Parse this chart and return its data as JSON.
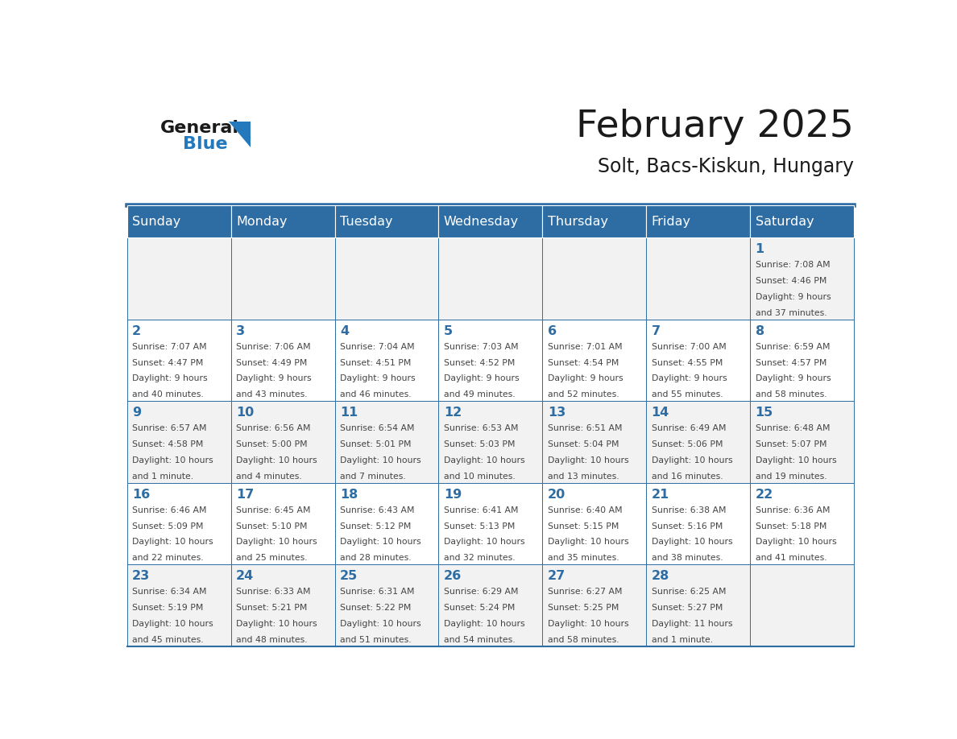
{
  "title": "February 2025",
  "subtitle": "Solt, Bacs-Kiskun, Hungary",
  "days_of_week": [
    "Sunday",
    "Monday",
    "Tuesday",
    "Wednesday",
    "Thursday",
    "Friday",
    "Saturday"
  ],
  "header_bg": "#2E6DA4",
  "header_text": "#FFFFFF",
  "cell_bg_even": "#F2F2F2",
  "cell_bg_odd": "#FFFFFF",
  "border_color": "#2E6DA4",
  "day_number_color": "#2E6DA4",
  "text_color": "#444444",
  "title_color": "#1a1a1a",
  "logo_general_color": "#1a1a1a",
  "logo_blue_color": "#2479BD",
  "weeks": [
    [
      null,
      null,
      null,
      null,
      null,
      null,
      1
    ],
    [
      2,
      3,
      4,
      5,
      6,
      7,
      8
    ],
    [
      9,
      10,
      11,
      12,
      13,
      14,
      15
    ],
    [
      16,
      17,
      18,
      19,
      20,
      21,
      22
    ],
    [
      23,
      24,
      25,
      26,
      27,
      28,
      null
    ]
  ],
  "day_data": {
    "1": {
      "sunrise": "7:08 AM",
      "sunset": "4:46 PM",
      "daylight_line1": "Daylight: 9 hours",
      "daylight_line2": "and 37 minutes."
    },
    "2": {
      "sunrise": "7:07 AM",
      "sunset": "4:47 PM",
      "daylight_line1": "Daylight: 9 hours",
      "daylight_line2": "and 40 minutes."
    },
    "3": {
      "sunrise": "7:06 AM",
      "sunset": "4:49 PM",
      "daylight_line1": "Daylight: 9 hours",
      "daylight_line2": "and 43 minutes."
    },
    "4": {
      "sunrise": "7:04 AM",
      "sunset": "4:51 PM",
      "daylight_line1": "Daylight: 9 hours",
      "daylight_line2": "and 46 minutes."
    },
    "5": {
      "sunrise": "7:03 AM",
      "sunset": "4:52 PM",
      "daylight_line1": "Daylight: 9 hours",
      "daylight_line2": "and 49 minutes."
    },
    "6": {
      "sunrise": "7:01 AM",
      "sunset": "4:54 PM",
      "daylight_line1": "Daylight: 9 hours",
      "daylight_line2": "and 52 minutes."
    },
    "7": {
      "sunrise": "7:00 AM",
      "sunset": "4:55 PM",
      "daylight_line1": "Daylight: 9 hours",
      "daylight_line2": "and 55 minutes."
    },
    "8": {
      "sunrise": "6:59 AM",
      "sunset": "4:57 PM",
      "daylight_line1": "Daylight: 9 hours",
      "daylight_line2": "and 58 minutes."
    },
    "9": {
      "sunrise": "6:57 AM",
      "sunset": "4:58 PM",
      "daylight_line1": "Daylight: 10 hours",
      "daylight_line2": "and 1 minute."
    },
    "10": {
      "sunrise": "6:56 AM",
      "sunset": "5:00 PM",
      "daylight_line1": "Daylight: 10 hours",
      "daylight_line2": "and 4 minutes."
    },
    "11": {
      "sunrise": "6:54 AM",
      "sunset": "5:01 PM",
      "daylight_line1": "Daylight: 10 hours",
      "daylight_line2": "and 7 minutes."
    },
    "12": {
      "sunrise": "6:53 AM",
      "sunset": "5:03 PM",
      "daylight_line1": "Daylight: 10 hours",
      "daylight_line2": "and 10 minutes."
    },
    "13": {
      "sunrise": "6:51 AM",
      "sunset": "5:04 PM",
      "daylight_line1": "Daylight: 10 hours",
      "daylight_line2": "and 13 minutes."
    },
    "14": {
      "sunrise": "6:49 AM",
      "sunset": "5:06 PM",
      "daylight_line1": "Daylight: 10 hours",
      "daylight_line2": "and 16 minutes."
    },
    "15": {
      "sunrise": "6:48 AM",
      "sunset": "5:07 PM",
      "daylight_line1": "Daylight: 10 hours",
      "daylight_line2": "and 19 minutes."
    },
    "16": {
      "sunrise": "6:46 AM",
      "sunset": "5:09 PM",
      "daylight_line1": "Daylight: 10 hours",
      "daylight_line2": "and 22 minutes."
    },
    "17": {
      "sunrise": "6:45 AM",
      "sunset": "5:10 PM",
      "daylight_line1": "Daylight: 10 hours",
      "daylight_line2": "and 25 minutes."
    },
    "18": {
      "sunrise": "6:43 AM",
      "sunset": "5:12 PM",
      "daylight_line1": "Daylight: 10 hours",
      "daylight_line2": "and 28 minutes."
    },
    "19": {
      "sunrise": "6:41 AM",
      "sunset": "5:13 PM",
      "daylight_line1": "Daylight: 10 hours",
      "daylight_line2": "and 32 minutes."
    },
    "20": {
      "sunrise": "6:40 AM",
      "sunset": "5:15 PM",
      "daylight_line1": "Daylight: 10 hours",
      "daylight_line2": "and 35 minutes."
    },
    "21": {
      "sunrise": "6:38 AM",
      "sunset": "5:16 PM",
      "daylight_line1": "Daylight: 10 hours",
      "daylight_line2": "and 38 minutes."
    },
    "22": {
      "sunrise": "6:36 AM",
      "sunset": "5:18 PM",
      "daylight_line1": "Daylight: 10 hours",
      "daylight_line2": "and 41 minutes."
    },
    "23": {
      "sunrise": "6:34 AM",
      "sunset": "5:19 PM",
      "daylight_line1": "Daylight: 10 hours",
      "daylight_line2": "and 45 minutes."
    },
    "24": {
      "sunrise": "6:33 AM",
      "sunset": "5:21 PM",
      "daylight_line1": "Daylight: 10 hours",
      "daylight_line2": "and 48 minutes."
    },
    "25": {
      "sunrise": "6:31 AM",
      "sunset": "5:22 PM",
      "daylight_line1": "Daylight: 10 hours",
      "daylight_line2": "and 51 minutes."
    },
    "26": {
      "sunrise": "6:29 AM",
      "sunset": "5:24 PM",
      "daylight_line1": "Daylight: 10 hours",
      "daylight_line2": "and 54 minutes."
    },
    "27": {
      "sunrise": "6:27 AM",
      "sunset": "5:25 PM",
      "daylight_line1": "Daylight: 10 hours",
      "daylight_line2": "and 58 minutes."
    },
    "28": {
      "sunrise": "6:25 AM",
      "sunset": "5:27 PM",
      "daylight_line1": "Daylight: 11 hours",
      "daylight_line2": "and 1 minute."
    }
  }
}
